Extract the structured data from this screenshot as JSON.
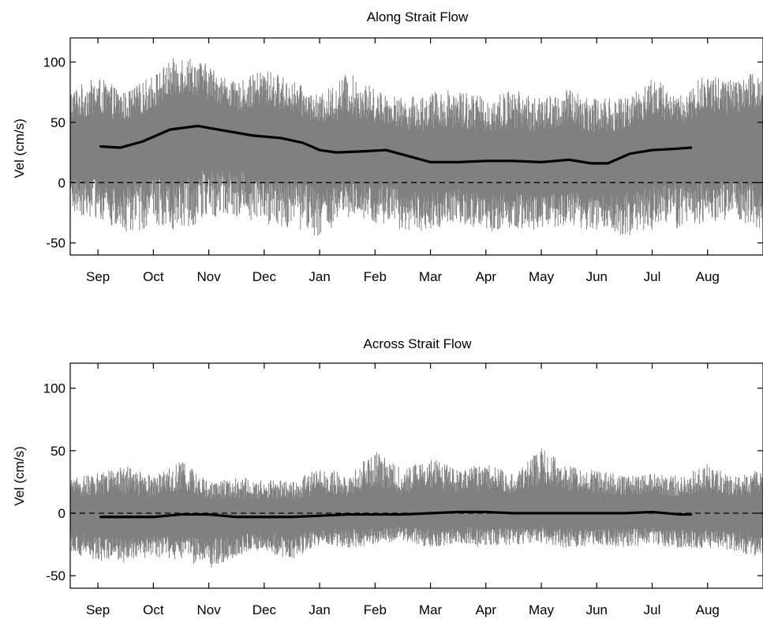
{
  "colors": {
    "background": "#ffffff",
    "raw_signal": "#808080",
    "smoothed": "#000000",
    "axes": "#000000",
    "zero_line": "#000000"
  },
  "chart_data": [
    {
      "type": "line",
      "title": "Along Strait Flow",
      "xlabel": "",
      "ylabel": "Vel (cm/s)",
      "ylim": [
        -60,
        120
      ],
      "yticks": [
        -50,
        0,
        50,
        100
      ],
      "xtick_labels": [
        "Sep",
        "Oct",
        "Nov",
        "Dec",
        "Jan",
        "Feb",
        "Mar",
        "Apr",
        "May",
        "Jun",
        "Jul",
        "Aug"
      ],
      "grid": false,
      "legend": "none",
      "reference_line": {
        "y": 0,
        "style": "dashed"
      },
      "series": [
        {
          "style": "raw",
          "envelope": {
            "month": [
              0,
              0.5,
              1,
              1.5,
              2,
              2.5,
              3,
              3.5,
              4,
              4.5,
              5,
              5.5,
              6,
              6.5,
              7,
              7.5,
              8,
              8.5,
              9,
              9.5,
              10,
              10.5,
              11,
              11.5,
              12,
              12.5
            ],
            "upper": [
              78,
              88,
              75,
              90,
              108,
              98,
              82,
              95,
              85,
              72,
              92,
              78,
              70,
              75,
              80,
              70,
              78,
              70,
              78,
              72,
              70,
              88,
              72,
              92,
              85,
              95
            ],
            "lower": [
              -25,
              -30,
              -45,
              -35,
              -40,
              -30,
              -28,
              -35,
              -38,
              -45,
              -30,
              -35,
              -40,
              -40,
              -32,
              -45,
              -38,
              -40,
              -38,
              -40,
              -45,
              -40,
              -38,
              -35,
              -30,
              -40
            ]
          }
        },
        {
          "style": "smoothed",
          "x": [
            0.55,
            0.9,
            1.3,
            1.8,
            2.3,
            2.8,
            3.3,
            3.8,
            4.2,
            4.5,
            4.8,
            5.3,
            5.7,
            6.1,
            6.5,
            7.0,
            7.5,
            8.0,
            8.5,
            9.0,
            9.4,
            9.7,
            10.1,
            10.5,
            10.9,
            11.2
          ],
          "y": [
            30,
            29,
            34,
            44,
            47,
            43,
            39,
            37,
            33,
            27,
            25,
            26,
            27,
            22,
            17,
            17,
            18,
            18,
            17,
            19,
            16,
            16,
            24,
            27,
            28,
            29
          ]
        }
      ]
    },
    {
      "type": "line",
      "title": "Across Strait Flow",
      "xlabel": "",
      "ylabel": "Vel (cm/s)",
      "ylim": [
        -60,
        120
      ],
      "yticks": [
        -50,
        0,
        50,
        100
      ],
      "xtick_labels": [
        "Sep",
        "Oct",
        "Nov",
        "Dec",
        "Jan",
        "Feb",
        "Mar",
        "Apr",
        "May",
        "Jun",
        "Jul",
        "Aug"
      ],
      "grid": false,
      "legend": "none",
      "reference_line": {
        "y": 0,
        "style": "dashed"
      },
      "series": [
        {
          "style": "raw",
          "envelope": {
            "month": [
              0,
              0.5,
              1,
              1.5,
              2,
              2.5,
              3,
              3.5,
              4,
              4.5,
              5,
              5.5,
              6,
              6.5,
              7,
              7.5,
              8,
              8.5,
              9,
              9.5,
              10,
              10.5,
              11,
              11.5,
              12,
              12.5
            ],
            "upper": [
              28,
              32,
              38,
              30,
              42,
              25,
              30,
              28,
              25,
              38,
              30,
              50,
              35,
              45,
              35,
              40,
              32,
              52,
              38,
              35,
              30,
              32,
              30,
              40,
              30,
              35
            ],
            "lower": [
              -32,
              -38,
              -40,
              -35,
              -38,
              -45,
              -35,
              -30,
              -38,
              -25,
              -28,
              -25,
              -22,
              -28,
              -25,
              -28,
              -25,
              -25,
              -28,
              -25,
              -28,
              -25,
              -28,
              -28,
              -30,
              -38
            ]
          }
        },
        {
          "style": "smoothed",
          "x": [
            0.55,
            1.0,
            1.5,
            2.0,
            2.5,
            3.0,
            3.5,
            4.0,
            4.5,
            5.0,
            5.5,
            6.0,
            6.5,
            7.0,
            7.5,
            8.0,
            8.5,
            9.0,
            9.5,
            10.0,
            10.5,
            11.0,
            11.2
          ],
          "y": [
            -3,
            -3,
            -3,
            -1,
            -1,
            -3,
            -3,
            -3,
            -2,
            -1,
            -1,
            -1,
            0,
            1,
            1,
            0,
            0,
            0,
            0,
            0,
            1,
            -1,
            -1
          ]
        }
      ]
    }
  ]
}
